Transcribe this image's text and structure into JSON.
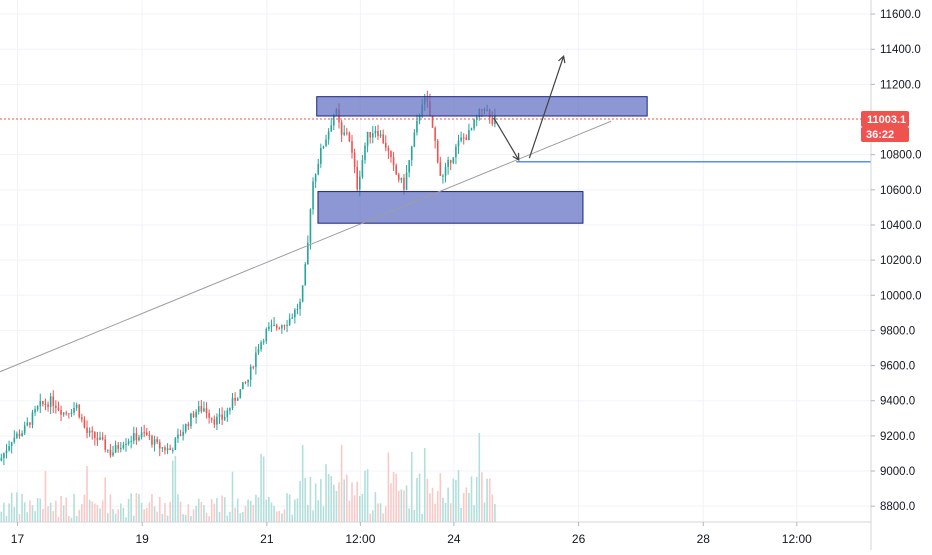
{
  "chart_data": {
    "type": "candlestick",
    "y_axis": {
      "ticks": [
        {
          "value": 11600,
          "label": "11600.0"
        },
        {
          "value": 11400,
          "label": "11400.0"
        },
        {
          "value": 11200,
          "label": "11200.0"
        },
        {
          "value": 10800,
          "label": "10800.0"
        },
        {
          "value": 10600,
          "label": "10600.0"
        },
        {
          "value": 10400,
          "label": "10400.0"
        },
        {
          "value": 10200,
          "label": "10200.0"
        },
        {
          "value": 10000,
          "label": "10000.0"
        },
        {
          "value": 9800,
          "label": "9800.0"
        },
        {
          "value": 9600,
          "label": "9600.0"
        },
        {
          "value": 9400,
          "label": "9400.0"
        },
        {
          "value": 9200,
          "label": "9200.0"
        },
        {
          "value": 9000,
          "label": "9000.0"
        },
        {
          "value": 8800,
          "label": "8800.0"
        }
      ],
      "range": [
        8710,
        11680
      ]
    },
    "x_axis": {
      "ticks": [
        {
          "t": 17.0,
          "label": "17"
        },
        {
          "t": 19.0,
          "label": "19"
        },
        {
          "t": 21.0,
          "label": "21"
        },
        {
          "t": 22.5,
          "label": "12:00"
        },
        {
          "t": 24.0,
          "label": "24"
        },
        {
          "t": 26.0,
          "label": "26"
        },
        {
          "t": 28.0,
          "label": "28"
        },
        {
          "t": 29.5,
          "label": "12:00"
        }
      ],
      "range": [
        16.72,
        30.69
      ]
    },
    "current_price": {
      "value": 11003.1,
      "label": "11003.1",
      "countdown": "36:22"
    },
    "grid": true,
    "colors": {
      "up": "#26a69a",
      "down": "#ef5350",
      "zone_fill": "#5c6bc0",
      "zone_border": "#1a237e",
      "trendline": "#9e9e9e",
      "hline": "#5b8def",
      "arrow": "#424242",
      "price_line": "#ef5350",
      "grid": "#f0f3fa",
      "axis_text": "#131722",
      "volume_up": "#b2dfdb",
      "volume_down": "#f8c9c7"
    },
    "annotations": {
      "zones": [
        {
          "t1": 21.8,
          "t2": 27.1,
          "p1": 11020,
          "p2": 11130
        },
        {
          "t1": 21.82,
          "t2": 26.07,
          "p1": 10410,
          "p2": 10590
        }
      ],
      "trendline": {
        "t1": 16.72,
        "p1": 9565,
        "t2": 26.52,
        "p2": 10990
      },
      "hline": {
        "t1": 25.0,
        "t2": 30.69,
        "p": 10760
      },
      "arrows": [
        {
          "t1": 24.64,
          "p1": 11010,
          "t2": 25.04,
          "p2": 10770
        },
        {
          "t1": 25.21,
          "p1": 10780,
          "t2": 25.76,
          "p2": 11360
        }
      ]
    }
  }
}
